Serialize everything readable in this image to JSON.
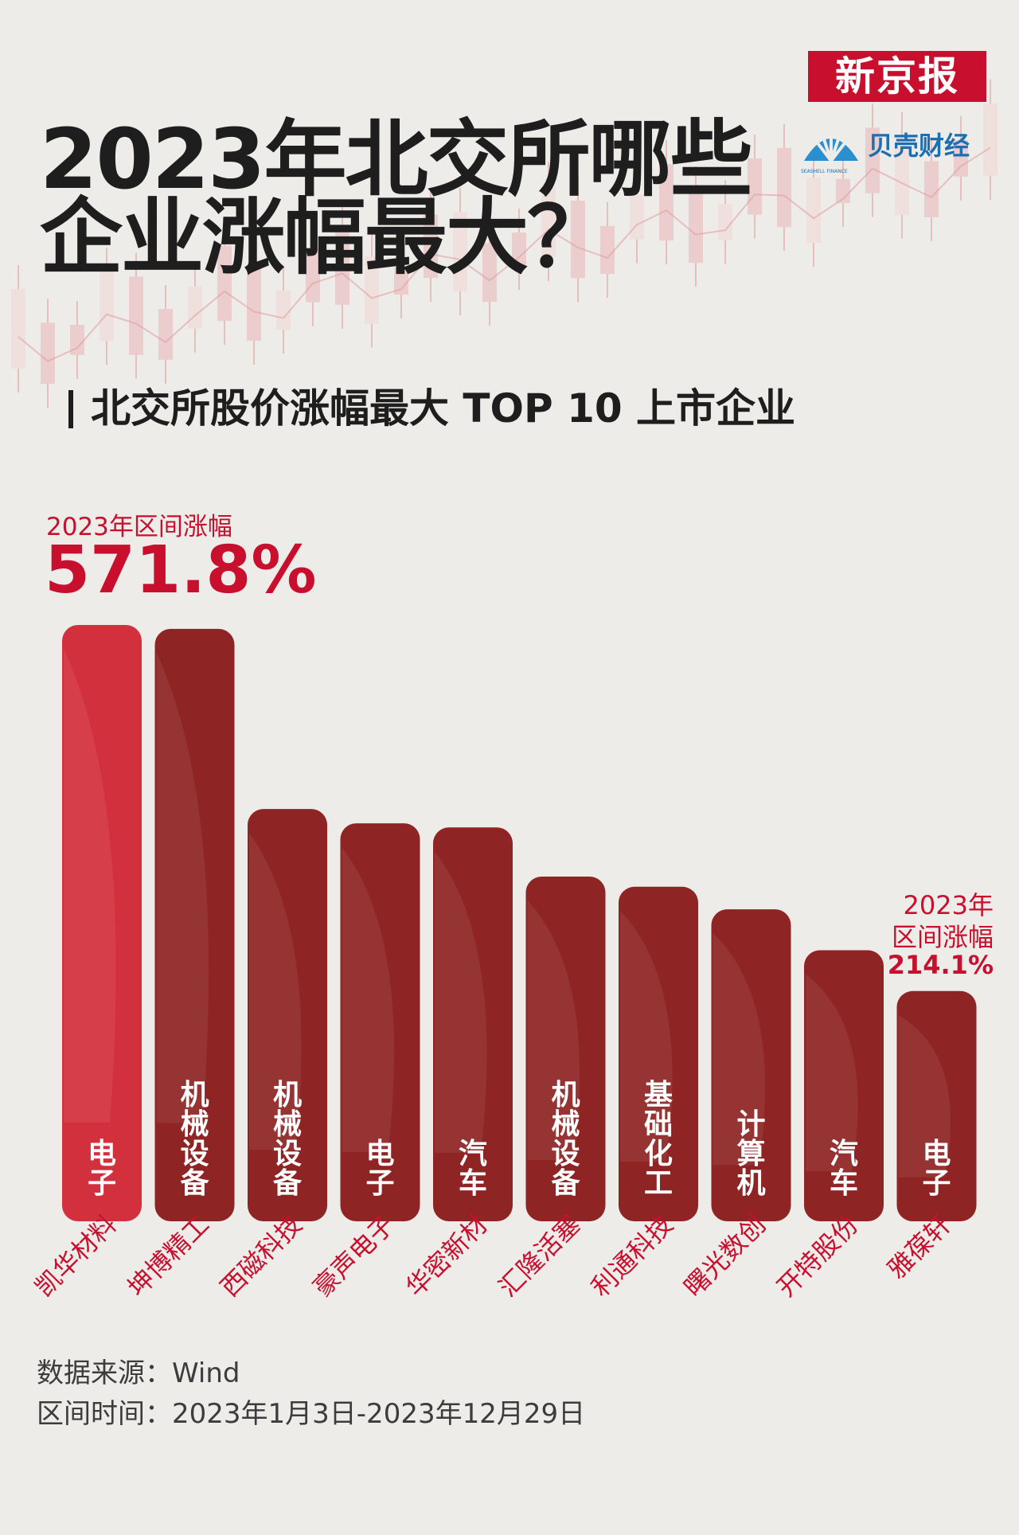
{
  "header": {
    "brand": "新京报",
    "sub_brand": "贝壳财经",
    "sub_brand_small": "SEASHELL FINANCE",
    "title_line1": "2023年北交所哪些",
    "title_line2": "企业涨幅最大？",
    "subtitle": "北交所股价涨幅最大 TOP 10 上市企业"
  },
  "annotations": {
    "max_label": "2023年区间涨幅",
    "max_value": "571.8%",
    "min_label_line1": "2023年",
    "min_label_line2": "区间涨幅",
    "min_value": "214.1%"
  },
  "chart_data": {
    "type": "bar",
    "title": "北交所股价涨幅最大 TOP 10 上市企业",
    "categories": [
      "凯华材料",
      "坤博精工",
      "西磁科技",
      "豪声电子",
      "华密新材",
      "汇隆活塞",
      "利通科技",
      "曙光数创",
      "开特股份",
      "雅葆轩"
    ],
    "industries": [
      "电子",
      "机械设备",
      "机械设备",
      "电子",
      "汽车",
      "机械设备",
      "基础化工",
      "计算机",
      "汽车",
      "电子"
    ],
    "series": [
      {
        "values": [
          571.8,
          568,
          392,
          378,
          374,
          326,
          316,
          294,
          254,
          214.1
        ]
      }
    ],
    "ylabel": "",
    "xlabel": "",
    "unit": "%",
    "labeled_values": {
      "first": "571.8%",
      "last": "214.1%"
    },
    "colors": {
      "first_bar": "#d3303d",
      "bars": "#8e2424",
      "category_text": "#c8102e",
      "industry_text": "#ffffff"
    }
  },
  "footer": {
    "source": "数据来源：Wind",
    "period": "区间时间：2023年1月3日-2023年12月29日"
  }
}
